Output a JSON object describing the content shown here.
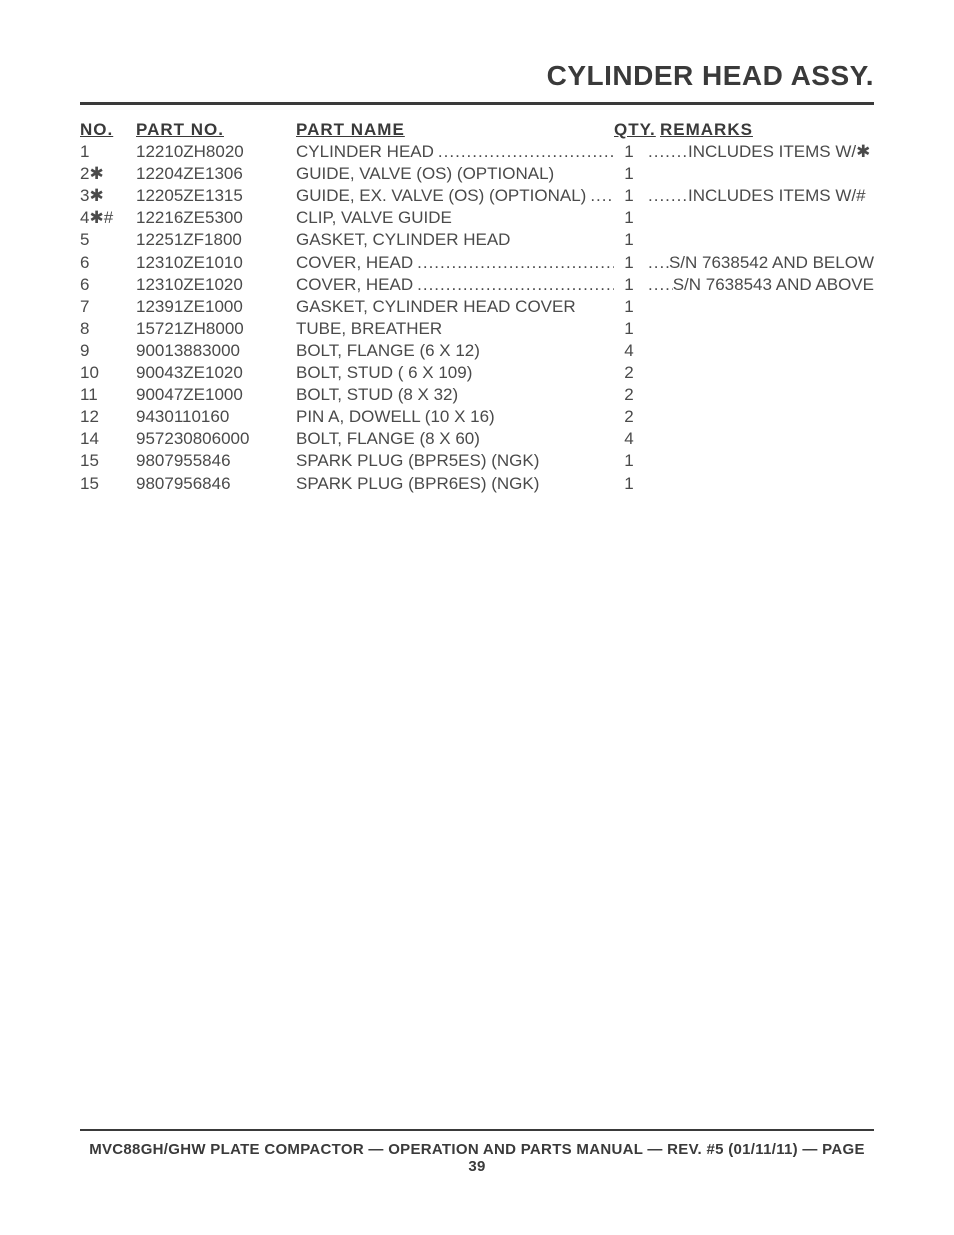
{
  "title": "CYLINDER HEAD ASSY.",
  "headers": {
    "no": "NO.",
    "part": "PART NO.",
    "name": "PART NAME",
    "qty": "QTY.",
    "remarks": "REMARKS"
  },
  "rows": [
    {
      "no": "1",
      "part": "12210ZH8020",
      "name": "CYLINDER HEAD",
      "qty": "1",
      "remarks": "INCLUDES ITEMS W/*",
      "lead_name": true,
      "lead_rem": true
    },
    {
      "no": "2*",
      "part": "12204ZE1306",
      "name": "GUIDE, VALVE (OS) (OPTIONAL)",
      "qty": "1",
      "remarks": "",
      "lead_name": false,
      "lead_rem": false
    },
    {
      "no": "3*",
      "part": "12205ZE1315",
      "name": "GUIDE, EX. VALVE (OS) (OPTIONAL)",
      "qty": "1",
      "remarks": "INCLUDES ITEMS W/#",
      "lead_name": true,
      "lead_rem": true
    },
    {
      "no": "4*#",
      "part": "12216ZE5300",
      "name": "CLIP, VALVE GUIDE",
      "qty": "1",
      "remarks": "",
      "lead_name": false,
      "lead_rem": false
    },
    {
      "no": "5",
      "part": "12251ZF1800",
      "name": "GASKET, CYLINDER HEAD",
      "qty": "1",
      "remarks": "",
      "lead_name": false,
      "lead_rem": false
    },
    {
      "no": "6",
      "part": "12310ZE1010",
      "name": "COVER, HEAD",
      "qty": "1",
      "remarks": "S/N 7638542 AND BELOW",
      "lead_name": true,
      "lead_rem": true
    },
    {
      "no": "6",
      "part": "12310ZE1020",
      "name": "COVER, HEAD",
      "qty": "1",
      "remarks": "S/N 7638543 AND ABOVE",
      "lead_name": true,
      "lead_rem": true
    },
    {
      "no": "7",
      "part": "12391ZE1000",
      "name": "GASKET, CYLINDER HEAD COVER",
      "qty": "1",
      "remarks": "",
      "lead_name": false,
      "lead_rem": false
    },
    {
      "no": "8",
      "part": "15721ZH8000",
      "name": "TUBE, BREATHER",
      "qty": "1",
      "remarks": "",
      "lead_name": false,
      "lead_rem": false
    },
    {
      "no": "9",
      "part": "90013883000",
      "name": "BOLT, FLANGE (6 X 12)",
      "qty": "4",
      "remarks": "",
      "lead_name": false,
      "lead_rem": false
    },
    {
      "no": "10",
      "part": "90043ZE1020",
      "name": "BOLT, STUD ( 6 X 109)",
      "qty": "2",
      "remarks": "",
      "lead_name": false,
      "lead_rem": false
    },
    {
      "no": "11",
      "part": "90047ZE1000",
      "name": "BOLT, STUD (8 X 32)",
      "qty": "2",
      "remarks": "",
      "lead_name": false,
      "lead_rem": false
    },
    {
      "no": "12",
      "part": "9430110160",
      "name": "PIN A, DOWELL (10 X 16)",
      "qty": "2",
      "remarks": "",
      "lead_name": false,
      "lead_rem": false
    },
    {
      "no": "14",
      "part": "957230806000",
      "name": "BOLT, FLANGE (8 X 60)",
      "qty": "4",
      "remarks": "",
      "lead_name": false,
      "lead_rem": false
    },
    {
      "no": "15",
      "part": "9807955846",
      "name": "SPARK PLUG (BPR5ES) (NGK)",
      "qty": "1",
      "remarks": "",
      "lead_name": false,
      "lead_rem": false
    },
    {
      "no": "15",
      "part": "9807956846",
      "name": "SPARK PLUG (BPR6ES) (NGK)",
      "qty": "1",
      "remarks": "",
      "lead_name": false,
      "lead_rem": false
    }
  ],
  "footer": "MVC88GH/GHW PLATE COMPACTOR  — OPERATION AND PARTS MANUAL — REV. #5 (01/11/11) — PAGE 39",
  "colors": {
    "text": "#4a4a4a",
    "strong": "#3a3a3a",
    "background": "#ffffff"
  }
}
